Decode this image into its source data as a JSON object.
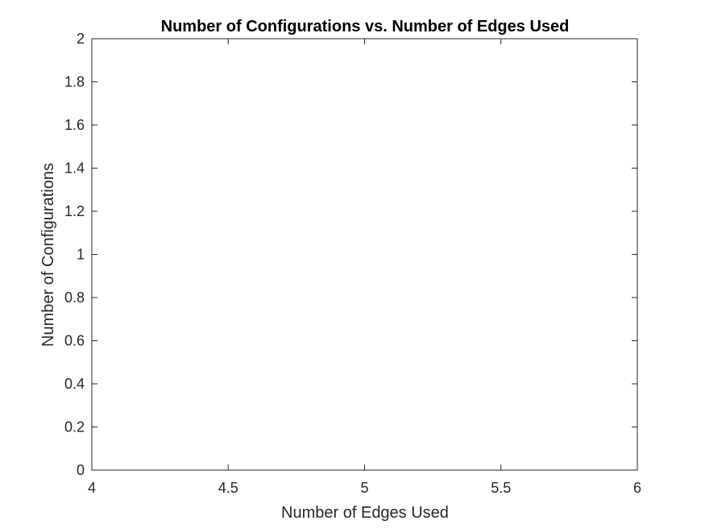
{
  "chart_data": {
    "type": "line",
    "title": "Number of Configurations vs. Number of Edges Used",
    "xlabel": "Number of Edges Used",
    "ylabel": "Number of Configurations",
    "xlim": [
      4,
      6
    ],
    "ylim": [
      0,
      2
    ],
    "xticks": [
      4,
      4.5,
      5,
      5.5,
      6
    ],
    "xtick_labels": [
      "4",
      "4.5",
      "5",
      "5.5",
      "6"
    ],
    "yticks": [
      0,
      0.2,
      0.4,
      0.6,
      0.8,
      1,
      1.2,
      1.4,
      1.6,
      1.8,
      2
    ],
    "ytick_labels": [
      "0",
      "0.2",
      "0.4",
      "0.6",
      "0.8",
      "1",
      "1.2",
      "1.4",
      "1.6",
      "1.8",
      "2"
    ],
    "series": [],
    "grid": false,
    "legend": "none",
    "colors": {
      "axis": "#262626",
      "title": "#000000",
      "background": "#ffffff"
    }
  }
}
